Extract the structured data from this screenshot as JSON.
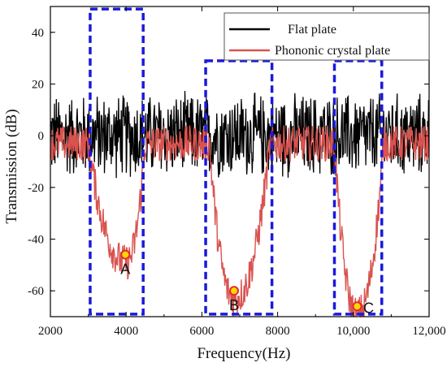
{
  "chart_data": {
    "type": "line",
    "xlabel": "Frequency(Hz)",
    "ylabel": "Transmission (dB)",
    "xlim": [
      2000,
      12000
    ],
    "ylim": [
      -70,
      50
    ],
    "x_ticks": [
      2000,
      4000,
      6000,
      8000,
      10000,
      12000
    ],
    "x_tick_labels": [
      "2000",
      "4000",
      "6000",
      "8000",
      "10,000",
      "12,000"
    ],
    "y_ticks": [
      -60,
      -40,
      -20,
      0,
      20,
      40
    ],
    "y_tick_labels": [
      "-60",
      "-40",
      "-20",
      "0",
      "20",
      "40"
    ],
    "grid": false,
    "legend_position": "top-right",
    "series": [
      {
        "name": "Flat plate",
        "color": "#000000",
        "noise_amplitude_db": 18,
        "baseline_db": 0
      },
      {
        "name": "Phononic crystal plate",
        "color": "#d9534f",
        "baseline_db": -3,
        "dips": [
          {
            "start": 3000,
            "end": 4500,
            "min_x": 4000,
            "min_y": -46
          },
          {
            "start": 6200,
            "end": 7800,
            "min_x": 6850,
            "min_y": -60
          },
          {
            "start": 9500,
            "end": 10800,
            "min_x": 10100,
            "min_y": -66
          }
        ]
      }
    ],
    "highlight_boxes": [
      {
        "x": [
          3050,
          4450
        ],
        "y": [
          -69,
          49
        ]
      },
      {
        "x": [
          6100,
          7850
        ],
        "y": [
          -69,
          29
        ]
      },
      {
        "x": [
          9500,
          10750
        ],
        "y": [
          -69,
          29
        ]
      }
    ],
    "markers": [
      {
        "label": "A",
        "x": 3980,
        "y": -46
      },
      {
        "label": "B",
        "x": 6850,
        "y": -60
      },
      {
        "label": "C",
        "x": 10100,
        "y": -66
      }
    ],
    "marker_fill": "#ffd700",
    "marker_stroke": "#e32d2d",
    "box_color": "#1a1adc"
  }
}
